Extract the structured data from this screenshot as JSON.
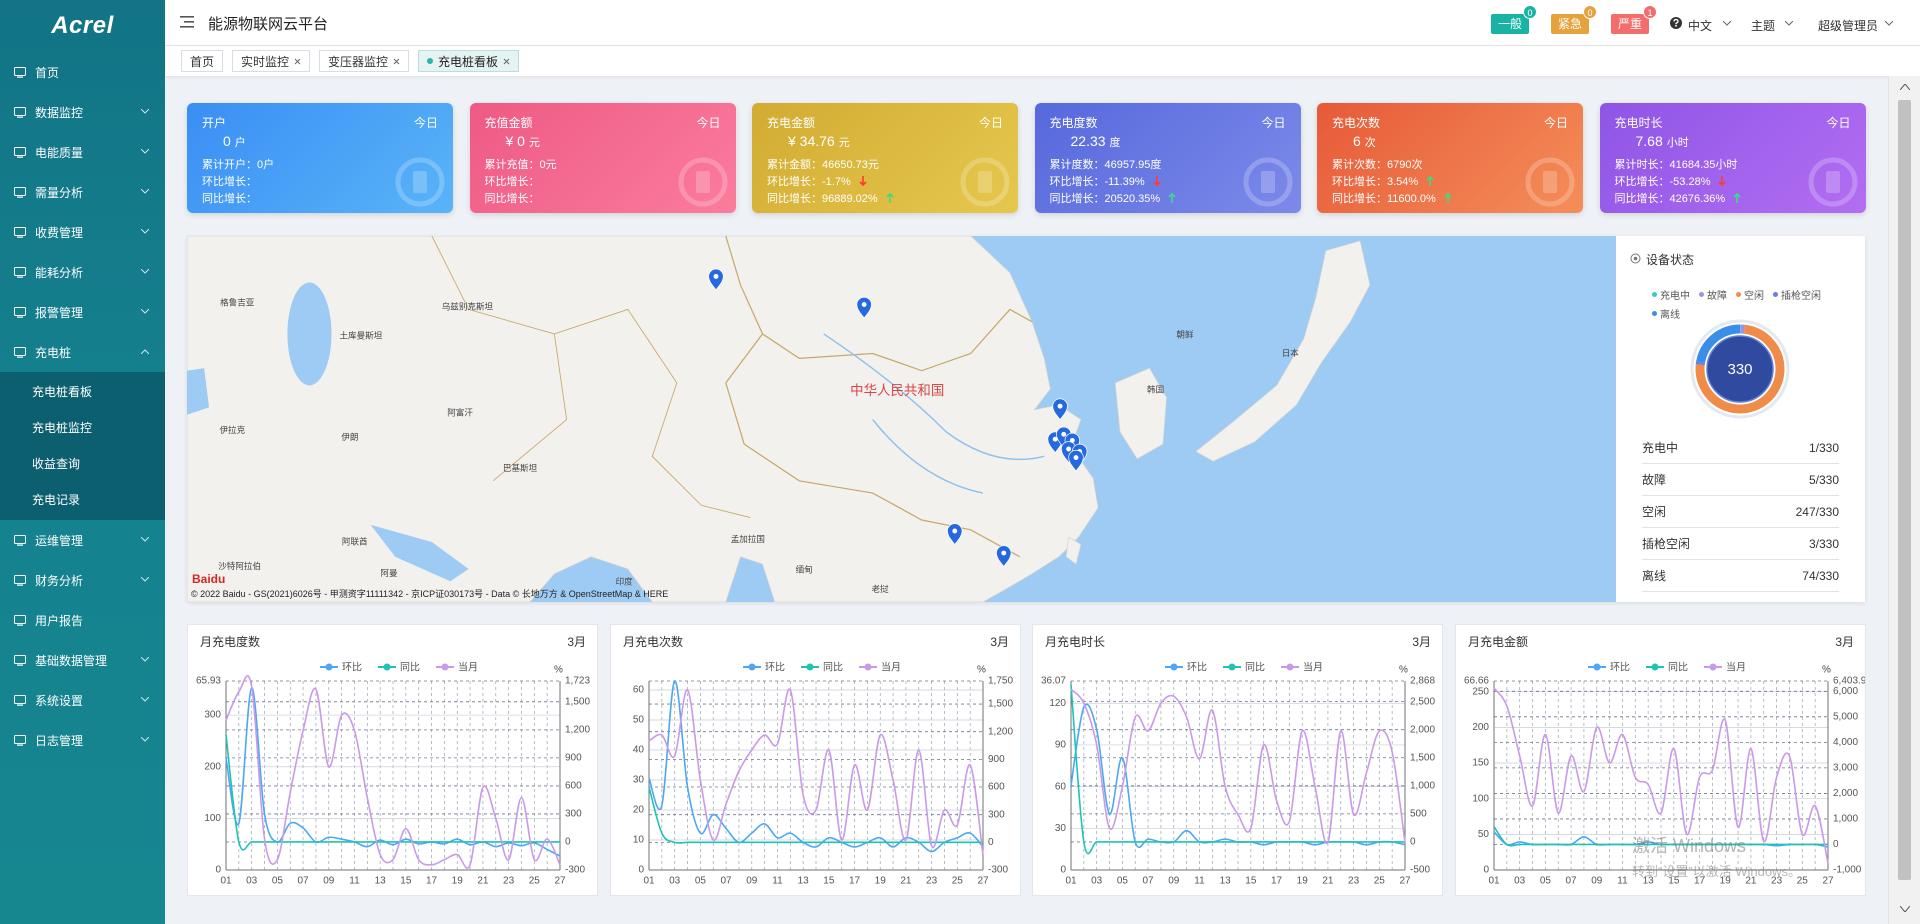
{
  "header": {
    "logo": "Acrel",
    "title": "能源物联网云平台",
    "alerts": [
      {
        "label": "一般",
        "count": 0,
        "color": "#19b3a3"
      },
      {
        "label": "紧急",
        "count": 0,
        "color": "#e6a23c"
      },
      {
        "label": "严重",
        "count": 1,
        "color": "#f56c6c"
      }
    ],
    "language": "中文",
    "theme": "主题",
    "user": "超级管理员"
  },
  "sidebar": {
    "items": [
      {
        "label": "首页"
      },
      {
        "label": "数据监控",
        "collapsible": true
      },
      {
        "label": "电能质量",
        "collapsible": true
      },
      {
        "label": "需量分析",
        "collapsible": true
      },
      {
        "label": "收费管理",
        "collapsible": true
      },
      {
        "label": "能耗分析",
        "collapsible": true
      },
      {
        "label": "报警管理",
        "collapsible": true
      },
      {
        "label": "充电桩",
        "collapsible": true,
        "children": [
          "充电桩看板",
          "充电桩监控",
          "收益查询",
          "充电记录"
        ]
      },
      {
        "label": "运维管理",
        "collapsible": true
      },
      {
        "label": "财务分析",
        "collapsible": true
      },
      {
        "label": "用户报告"
      },
      {
        "label": "基础数据管理",
        "collapsible": true
      },
      {
        "label": "系统设置",
        "collapsible": true
      },
      {
        "label": "日志管理",
        "collapsible": true
      }
    ]
  },
  "tabs": {
    "items": [
      "首页",
      "实时监控",
      "变压器监控",
      "充电桩看板"
    ],
    "active": 3
  },
  "cards": [
    {
      "title": "开户",
      "period": "今日",
      "value": "0",
      "unit": "户",
      "colors": [
        "#3a8ef4",
        "#5ab4f8"
      ],
      "lines": [
        {
          "text": "累计开户：0户"
        },
        {
          "text": "环比增长："
        },
        {
          "text": "同比增长："
        }
      ]
    },
    {
      "title": "充值金额",
      "period": "今日",
      "value": "¥ 0",
      "unit": "元",
      "colors": [
        "#ee5a84",
        "#fb7c9c"
      ],
      "lines": [
        {
          "text": "累计充值：0元"
        },
        {
          "text": "环比增长："
        },
        {
          "text": "同比增长："
        }
      ]
    },
    {
      "title": "充电金额",
      "period": "今日",
      "value": "¥ 34.76",
      "unit": "元",
      "colors": [
        "#d2ab32",
        "#e6c84e"
      ],
      "lines": [
        {
          "text": "累计金额：46650.73元"
        },
        {
          "text": "环比增长：-1.7%",
          "trend": "down"
        },
        {
          "text": "同比增长：96889.02%",
          "trend": "up"
        }
      ]
    },
    {
      "title": "充电度数",
      "period": "今日",
      "value": "22.33",
      "unit": "度",
      "colors": [
        "#5669dc",
        "#7d8aea"
      ],
      "lines": [
        {
          "text": "累计度数：46957.95度"
        },
        {
          "text": "环比增长：-11.39%",
          "trend": "down"
        },
        {
          "text": "同比增长：20520.35%",
          "trend": "up"
        }
      ]
    },
    {
      "title": "充电次数",
      "period": "今日",
      "value": "6",
      "unit": "次",
      "colors": [
        "#e65a38",
        "#f58e5a"
      ],
      "lines": [
        {
          "text": "累计次数：6790次"
        },
        {
          "text": "环比增长：3.54%",
          "trend": "up"
        },
        {
          "text": "同比增长：11600.0%",
          "trend": "up"
        }
      ]
    },
    {
      "title": "充电时长",
      "period": "今日",
      "value": "7.68",
      "unit": "小时",
      "colors": [
        "#8e55e6",
        "#b36ef2"
      ],
      "lines": [
        {
          "text": "累计时长：41684.35小时"
        },
        {
          "text": "环比增长：-53.28%",
          "trend": "down"
        },
        {
          "text": "同比增长：42676.36%",
          "trend": "up"
        }
      ]
    }
  ],
  "map": {
    "country": "中华人民共和国",
    "labels": [
      "格鲁吉亚",
      "土库曼斯坦",
      "乌兹别克斯坦",
      "伊拉克",
      "伊朗",
      "阿富汗",
      "巴基斯坦",
      "印度",
      "孟加拉国",
      "缅甸",
      "老挝",
      "阿联酋",
      "阿曼",
      "沙特阿拉伯",
      "朝鲜",
      "韩国",
      "日本"
    ],
    "logo": "Baidu",
    "footer": "© 2022 Baidu - GS(2021)6026号 - 甲测资字11111342 - 京ICP证030173号 - Data © 长地万方 & OpenStreetMap & HERE"
  },
  "status": {
    "title": "设备状态",
    "total": 330,
    "items": [
      {
        "name": "充电中",
        "value": 1,
        "label": "1/330",
        "color": "#36cbcb"
      },
      {
        "name": "故障",
        "value": 5,
        "label": "5/330",
        "color": "#a58ee0"
      },
      {
        "name": "空闲",
        "value": 247,
        "label": "247/330",
        "color": "#f08c4a"
      },
      {
        "name": "插枪空闲",
        "value": 3,
        "label": "3/330",
        "color": "#6a7de0"
      },
      {
        "name": "离线",
        "value": 74,
        "label": "74/330",
        "color": "#3b8ee8"
      }
    ]
  },
  "chart_data": [
    {
      "type": "line",
      "title": "月充电度数",
      "period": "3月",
      "top_label": "65.93",
      "y2label": "%",
      "categories": [
        "01",
        null,
        "03",
        null,
        "05",
        null,
        "07",
        null,
        "09",
        null,
        "11",
        null,
        "13",
        null,
        "15",
        null,
        "17",
        null,
        "19",
        null,
        "21",
        null,
        "23",
        null,
        "25",
        null,
        "27"
      ],
      "ylim": [
        0,
        366
      ],
      "yticks": [
        0,
        100,
        200,
        300
      ],
      "y2lim": [
        -300,
        1723
      ],
      "y2ticks": [
        -300,
        0,
        300,
        600,
        900,
        {
          "value": 1200,
          "label": "1,200"
        },
        {
          "value": 1500,
          "label": "1,500"
        },
        {
          "value": 1723,
          "label": "1,723"
        }
      ],
      "series": [
        {
          "name": "环比",
          "color": "#4ea7f2",
          "axis": "y2",
          "values": [
            900,
            200,
            1650,
            300,
            0,
            200,
            150,
            0,
            50,
            30,
            0,
            -50,
            20,
            -30,
            30,
            -20,
            0,
            -20,
            30,
            -30,
            0,
            -50,
            -10,
            -40,
            -10,
            -80,
            -150
          ]
        },
        {
          "name": "同比",
          "color": "#1fc3b4",
          "axis": "y2",
          "values": [
            1150,
            0,
            0,
            0,
            0,
            0,
            0,
            0,
            0,
            0,
            0,
            0,
            0,
            0,
            0,
            0,
            0,
            0,
            0,
            0,
            0,
            0,
            0,
            0,
            0,
            0,
            0
          ]
        },
        {
          "name": "当月",
          "color": "#c99ae8",
          "values": [
            290,
            345,
            355,
            60,
            20,
            150,
            270,
            350,
            200,
            300,
            270,
            140,
            30,
            20,
            80,
            20,
            10,
            20,
            30,
            10,
            160,
            100,
            20,
            140,
            20,
            60,
            10
          ]
        }
      ]
    },
    {
      "type": "line",
      "title": "月充电次数",
      "period": "3月",
      "y2label": "%",
      "categories": [
        "01",
        null,
        "03",
        null,
        "05",
        null,
        "07",
        null,
        "09",
        null,
        "11",
        null,
        "13",
        null,
        "15",
        null,
        "17",
        null,
        "19",
        null,
        "21",
        null,
        "23",
        null,
        "25",
        null,
        "27"
      ],
      "ylim": [
        0,
        63
      ],
      "yticks": [
        0,
        10,
        20,
        30,
        40,
        50,
        60
      ],
      "y2lim": [
        -300,
        1750
      ],
      "y2ticks": [
        -300,
        0,
        300,
        600,
        900,
        {
          "value": 1200,
          "label": "1,200"
        },
        {
          "value": 1500,
          "label": "1,500"
        },
        {
          "value": 1750,
          "label": "1,750"
        }
      ],
      "series": [
        {
          "name": "环比",
          "color": "#4ea7f2",
          "axis": "y2",
          "values": [
            700,
            400,
            1750,
            600,
            100,
            300,
            150,
            0,
            100,
            200,
            50,
            100,
            0,
            -50,
            50,
            0,
            -50,
            0,
            50,
            -50,
            50,
            0,
            -100,
            0,
            50,
            100,
            -50
          ]
        },
        {
          "name": "同比",
          "color": "#1fc3b4",
          "axis": "y2",
          "values": [
            600,
            100,
            0,
            0,
            0,
            0,
            0,
            0,
            0,
            0,
            0,
            0,
            0,
            0,
            0,
            0,
            0,
            0,
            0,
            0,
            0,
            0,
            0,
            0,
            0,
            0,
            0
          ]
        },
        {
          "name": "当月",
          "color": "#c99ae8",
          "values": [
            43,
            45,
            38,
            60,
            30,
            10,
            22,
            33,
            40,
            45,
            42,
            60,
            25,
            20,
            40,
            10,
            35,
            20,
            45,
            30,
            10,
            40,
            8,
            20,
            15,
            35,
            5
          ]
        }
      ]
    },
    {
      "type": "line",
      "title": "月充电时长",
      "period": "3月",
      "top_label": "36.07",
      "y2label": "%",
      "categories": [
        "01",
        null,
        "03",
        null,
        "05",
        null,
        "07",
        null,
        "09",
        null,
        "11",
        null,
        "13",
        null,
        "15",
        null,
        "17",
        null,
        "19",
        null,
        "21",
        null,
        "23",
        null,
        "25",
        null,
        "27"
      ],
      "ylim": [
        0,
        136
      ],
      "yticks": [
        0,
        30,
        60,
        90,
        120
      ],
      "y2lim": [
        -500,
        2868
      ],
      "y2ticks": [
        -500,
        0,
        500,
        {
          "value": 1000,
          "label": "1,000"
        },
        {
          "value": 1500,
          "label": "1,500"
        },
        {
          "value": 2000,
          "label": "2,000"
        },
        {
          "value": 2500,
          "label": "2,500"
        },
        {
          "value": 2868,
          "label": "2,868"
        }
      ],
      "series": [
        {
          "name": "环比",
          "color": "#4ea7f2",
          "axis": "y2",
          "values": [
            1000,
            2400,
            2000,
            500,
            1500,
            0,
            50,
            0,
            0,
            200,
            0,
            0,
            50,
            0,
            0,
            -50,
            0,
            0,
            0,
            -50,
            0,
            0,
            0,
            -50,
            0,
            0,
            -50
          ]
        },
        {
          "name": "同比",
          "color": "#1fc3b4",
          "axis": "y2",
          "values": [
            2800,
            0,
            0,
            0,
            0,
            0,
            0,
            0,
            0,
            0,
            0,
            0,
            0,
            0,
            0,
            0,
            0,
            0,
            0,
            0,
            0,
            0,
            0,
            0,
            0,
            0,
            0
          ]
        },
        {
          "name": "当月",
          "color": "#c99ae8",
          "values": [
            130,
            120,
            90,
            30,
            60,
            110,
            100,
            120,
            125,
            110,
            80,
            115,
            60,
            40,
            30,
            90,
            50,
            35,
            100,
            60,
            20,
            100,
            40,
            70,
            100,
            85,
            20
          ]
        }
      ]
    },
    {
      "type": "line",
      "title": "月充电金额",
      "period": "3月",
      "top_label": "66.66",
      "y2label": "%",
      "categories": [
        "01",
        null,
        "03",
        null,
        "05",
        null,
        "07",
        null,
        "09",
        null,
        "11",
        null,
        "13",
        null,
        "15",
        null,
        "17",
        null,
        "19",
        null,
        "21",
        null,
        "23",
        null,
        "25",
        null,
        "27"
      ],
      "ylim": [
        0,
        265
      ],
      "yticks": [
        0,
        50,
        100,
        150,
        200,
        250
      ],
      "y2lim": [
        -1000,
        6403.9
      ],
      "y2ticks": [
        {
          "value": -1000,
          "label": "-1,000"
        },
        0,
        {
          "value": 1000,
          "label": "1,000"
        },
        {
          "value": 2000,
          "label": "2,000"
        },
        {
          "value": 3000,
          "label": "3,000"
        },
        {
          "value": 4000,
          "label": "4,000"
        },
        {
          "value": 5000,
          "label": "5,000"
        },
        {
          "value": 6000,
          "label": "6,000"
        },
        {
          "value": 6403.9,
          "label": "6,403.9"
        }
      ],
      "series": [
        {
          "name": "环比",
          "color": "#4ea7f2",
          "axis": "y2",
          "values": [
            500,
            0,
            100,
            0,
            0,
            0,
            0,
            300,
            0,
            0,
            0,
            0,
            100,
            0,
            0,
            0,
            0,
            0,
            0,
            0,
            0,
            0,
            -50,
            0,
            0,
            0,
            -100
          ]
        },
        {
          "name": "同比",
          "color": "#1fc3b4",
          "axis": "y2",
          "values": [
            700,
            0,
            0,
            0,
            0,
            0,
            0,
            0,
            0,
            0,
            0,
            0,
            0,
            0,
            0,
            0,
            0,
            0,
            0,
            0,
            0,
            0,
            0,
            0,
            0,
            0,
            0
          ]
        },
        {
          "name": "当月",
          "color": "#c99ae8",
          "values": [
            255,
            230,
            160,
            90,
            190,
            80,
            160,
            110,
            200,
            150,
            190,
            130,
            120,
            80,
            170,
            50,
            130,
            140,
            210,
            60,
            170,
            40,
            130,
            160,
            50,
            90,
            10
          ]
        }
      ]
    }
  ],
  "watermark": {
    "title": "激活 Windows",
    "text": "转到“设置”以激活 Windows。"
  }
}
